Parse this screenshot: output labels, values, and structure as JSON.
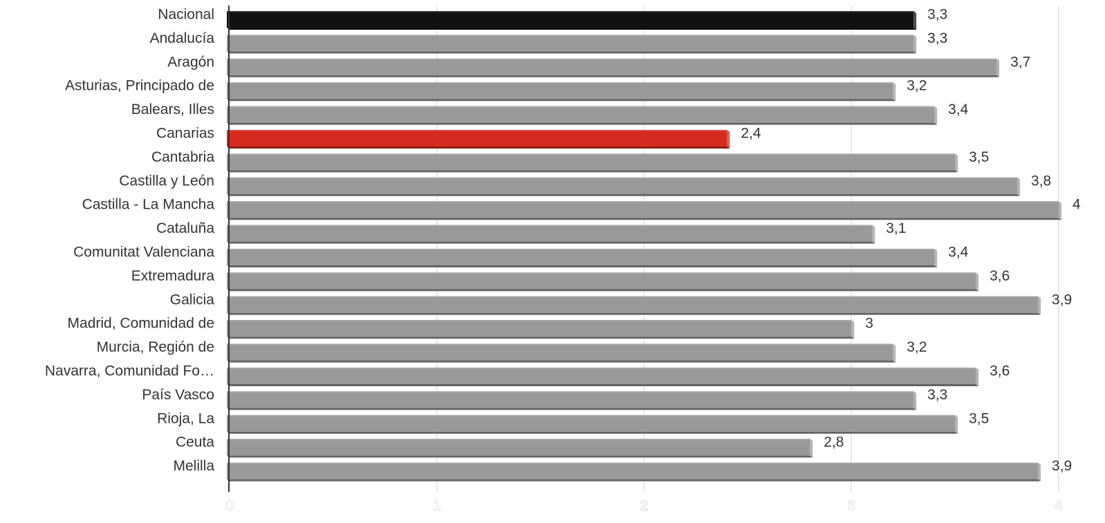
{
  "chart_data": {
    "type": "bar",
    "orientation": "horizontal",
    "title": "",
    "xlabel": "",
    "ylabel": "",
    "xlim": [
      0,
      4
    ],
    "ticks": [
      "0",
      "1",
      "2",
      "3",
      "4"
    ],
    "tick_values": [
      0,
      1,
      2,
      3,
      4
    ],
    "grid": true,
    "categories": [
      "Nacional",
      "Andalucía",
      "Aragón",
      "Asturias, Principado de",
      "Balears, Illes",
      "Canarias",
      "Cantabria",
      "Castilla y León",
      "Castilla - La Mancha",
      "Cataluña",
      "Comunitat Valenciana",
      "Extremadura",
      "Galicia",
      "Madrid, Comunidad de",
      "Murcia, Región de",
      "Navarra, Comunidad Fo…",
      "País Vasco",
      "Rioja, La",
      "Ceuta",
      "Melilla"
    ],
    "values": [
      3.3,
      3.3,
      3.7,
      3.2,
      3.4,
      2.4,
      3.5,
      3.8,
      4,
      3.1,
      3.4,
      3.6,
      3.9,
      3,
      3.2,
      3.6,
      3.3,
      3.5,
      2.8,
      3.9
    ],
    "value_labels": [
      "3,3",
      "3,3",
      "3,7",
      "3,2",
      "3,4",
      "2,4",
      "3,5",
      "3,8",
      "4",
      "3,1",
      "3,4",
      "3,6",
      "3,9",
      "3",
      "3,2",
      "3,6",
      "3,3",
      "3,5",
      "2,8",
      "3,9"
    ],
    "colors": {
      "default": "#999999",
      "highlight_national": "#111111",
      "highlight_canarias": "#d52b1e",
      "grid": "#e0e0e0"
    },
    "bar_colors": [
      "#111111",
      "#999999",
      "#999999",
      "#999999",
      "#999999",
      "#d52b1e",
      "#999999",
      "#999999",
      "#999999",
      "#999999",
      "#999999",
      "#999999",
      "#999999",
      "#999999",
      "#999999",
      "#999999",
      "#999999",
      "#999999",
      "#999999",
      "#999999"
    ]
  }
}
